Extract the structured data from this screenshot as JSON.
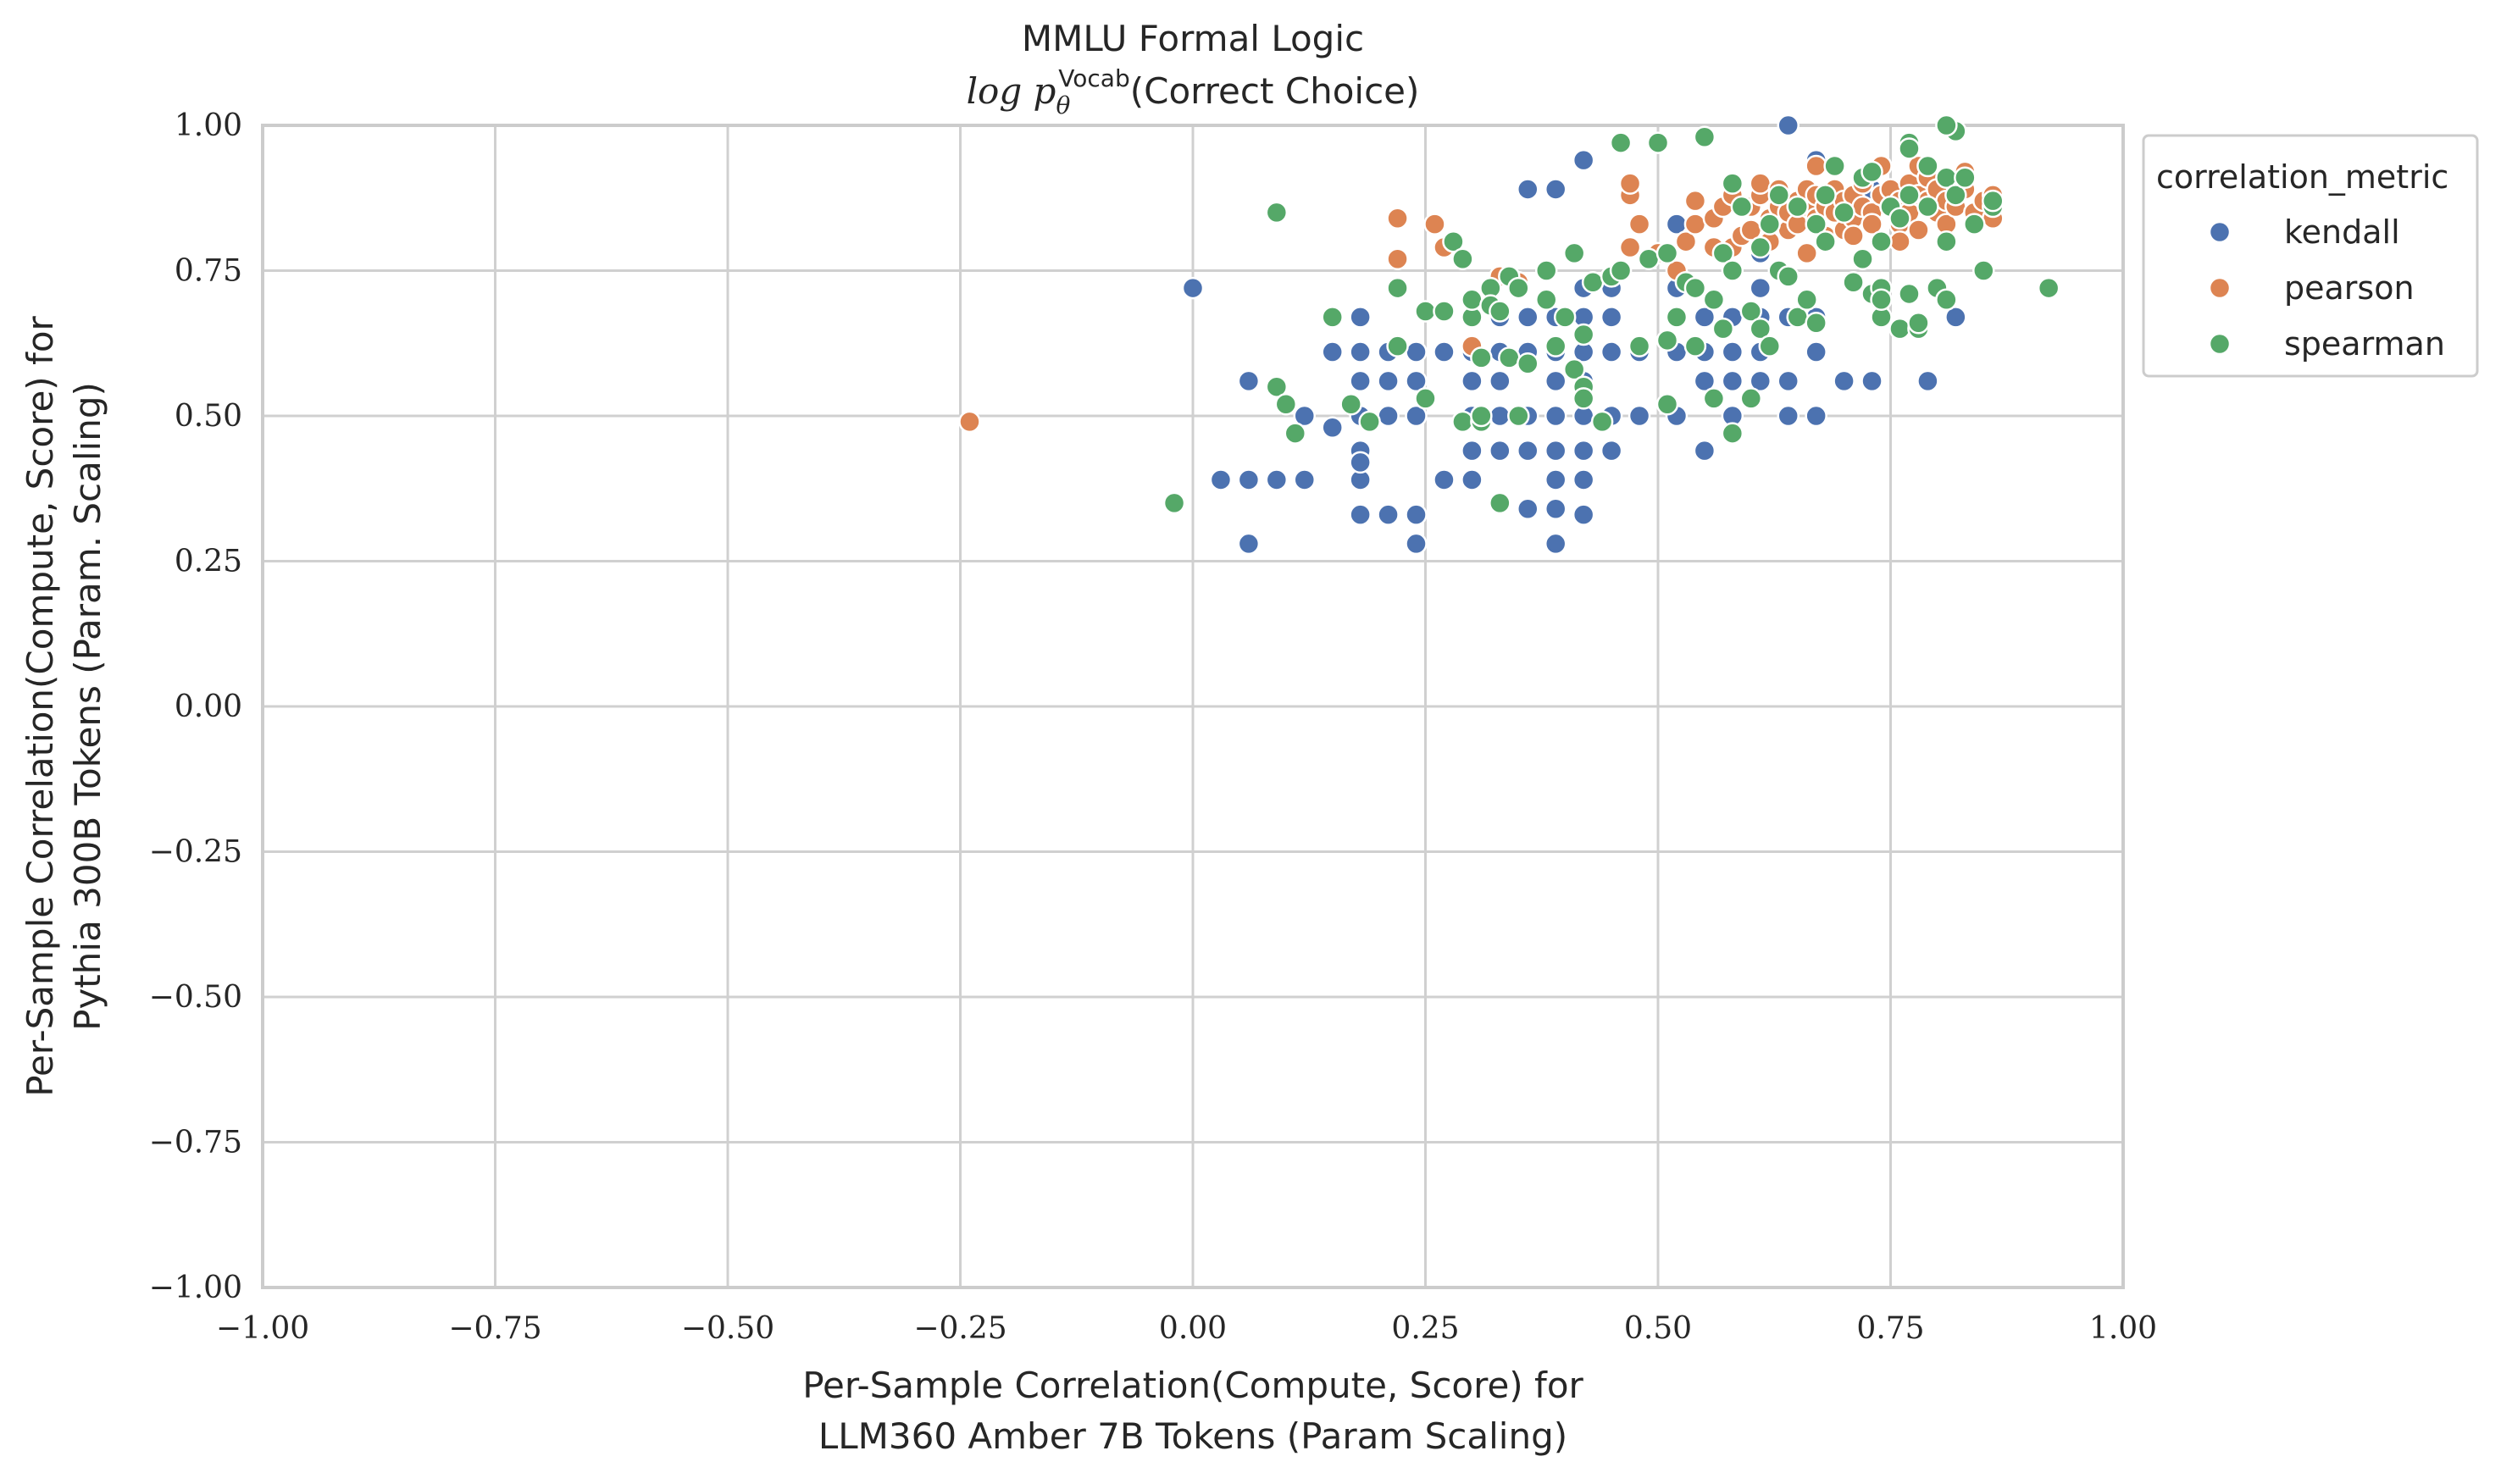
{
  "chart_data": {
    "type": "scatter",
    "title": "MMLU Formal Logic",
    "subtitle_prefix": "log p",
    "subtitle_sub": "θ",
    "subtitle_sup": "Vocab",
    "subtitle_suffix": "(Correct Choice)",
    "xlabel_line1": "Per-Sample Correlation(Compute, Score) for",
    "xlabel_line2": "LLM360 Amber 7B Tokens (Param Scaling)",
    "ylabel_line1": "Per-Sample Correlation(Compute, Score) for",
    "ylabel_line2": "Pythia 300B Tokens (Param. Scaling)",
    "xlim": [
      -1.0,
      1.0
    ],
    "ylim": [
      -1.0,
      1.0
    ],
    "grid": true,
    "legend_title": "correlation_metric",
    "legend_placement": "outside-top-right",
    "x_ticks": [
      -1.0,
      -0.75,
      -0.5,
      -0.25,
      0.0,
      0.25,
      0.5,
      0.75,
      1.0
    ],
    "y_ticks": [
      -1.0,
      -0.75,
      -0.5,
      -0.25,
      0.0,
      0.25,
      0.5,
      0.75,
      1.0
    ],
    "x_tick_labels": [
      "−1.00",
      "−0.75",
      "−0.50",
      "−0.25",
      "0.00",
      "0.25",
      "0.50",
      "0.75",
      "1.00"
    ],
    "y_tick_labels": [
      "−1.00",
      "−0.75",
      "−0.50",
      "−0.25",
      "0.00",
      "0.25",
      "0.50",
      "0.75",
      "1.00"
    ],
    "series": [
      {
        "name": "kendall",
        "color": "#4c72b0",
        "points": [
          [
            0.0,
            0.72
          ],
          [
            0.03,
            0.39
          ],
          [
            0.06,
            0.39
          ],
          [
            0.06,
            0.28
          ],
          [
            0.06,
            0.56
          ],
          [
            0.09,
            0.39
          ],
          [
            0.12,
            0.39
          ],
          [
            0.12,
            0.5
          ],
          [
            0.15,
            0.61
          ],
          [
            0.15,
            0.48
          ],
          [
            0.18,
            0.33
          ],
          [
            0.18,
            0.39
          ],
          [
            0.18,
            0.44
          ],
          [
            0.18,
            0.42
          ],
          [
            0.18,
            0.5
          ],
          [
            0.18,
            0.56
          ],
          [
            0.18,
            0.61
          ],
          [
            0.18,
            0.67
          ],
          [
            0.21,
            0.33
          ],
          [
            0.21,
            0.5
          ],
          [
            0.21,
            0.56
          ],
          [
            0.21,
            0.61
          ],
          [
            0.24,
            0.33
          ],
          [
            0.24,
            0.28
          ],
          [
            0.24,
            0.5
          ],
          [
            0.24,
            0.56
          ],
          [
            0.24,
            0.61
          ],
          [
            0.27,
            0.39
          ],
          [
            0.27,
            0.61
          ],
          [
            0.3,
            0.39
          ],
          [
            0.3,
            0.44
          ],
          [
            0.3,
            0.5
          ],
          [
            0.3,
            0.56
          ],
          [
            0.3,
            0.61
          ],
          [
            0.33,
            0.44
          ],
          [
            0.33,
            0.5
          ],
          [
            0.33,
            0.56
          ],
          [
            0.33,
            0.61
          ],
          [
            0.33,
            0.67
          ],
          [
            0.36,
            0.34
          ],
          [
            0.36,
            0.44
          ],
          [
            0.36,
            0.5
          ],
          [
            0.36,
            0.61
          ],
          [
            0.36,
            0.67
          ],
          [
            0.36,
            0.89
          ],
          [
            0.39,
            0.28
          ],
          [
            0.39,
            0.34
          ],
          [
            0.39,
            0.39
          ],
          [
            0.39,
            0.44
          ],
          [
            0.39,
            0.5
          ],
          [
            0.39,
            0.56
          ],
          [
            0.39,
            0.61
          ],
          [
            0.39,
            0.67
          ],
          [
            0.39,
            0.89
          ],
          [
            0.42,
            0.33
          ],
          [
            0.42,
            0.39
          ],
          [
            0.42,
            0.44
          ],
          [
            0.42,
            0.5
          ],
          [
            0.42,
            0.56
          ],
          [
            0.42,
            0.61
          ],
          [
            0.42,
            0.67
          ],
          [
            0.42,
            0.72
          ],
          [
            0.42,
            0.94
          ],
          [
            0.45,
            0.44
          ],
          [
            0.45,
            0.5
          ],
          [
            0.45,
            0.61
          ],
          [
            0.45,
            0.67
          ],
          [
            0.45,
            0.72
          ],
          [
            0.48,
            0.5
          ],
          [
            0.48,
            0.61
          ],
          [
            0.52,
            0.5
          ],
          [
            0.52,
            0.61
          ],
          [
            0.52,
            0.67
          ],
          [
            0.52,
            0.72
          ],
          [
            0.52,
            0.83
          ],
          [
            0.55,
            0.44
          ],
          [
            0.55,
            0.56
          ],
          [
            0.55,
            0.61
          ],
          [
            0.55,
            0.67
          ],
          [
            0.58,
            0.5
          ],
          [
            0.58,
            0.56
          ],
          [
            0.58,
            0.61
          ],
          [
            0.58,
            0.67
          ],
          [
            0.61,
            0.56
          ],
          [
            0.61,
            0.61
          ],
          [
            0.61,
            0.67
          ],
          [
            0.61,
            0.72
          ],
          [
            0.61,
            0.78
          ],
          [
            0.64,
            0.5
          ],
          [
            0.64,
            0.56
          ],
          [
            0.64,
            0.67
          ],
          [
            0.64,
            1.0
          ],
          [
            0.67,
            0.5
          ],
          [
            0.67,
            0.61
          ],
          [
            0.67,
            0.67
          ],
          [
            0.67,
            0.94
          ],
          [
            0.7,
            0.56
          ],
          [
            0.73,
            0.56
          ],
          [
            0.79,
            0.56
          ],
          [
            0.82,
            0.67
          ],
          [
            0.73,
            0.89
          ],
          [
            0.76,
            0.83
          ],
          [
            0.79,
            0.89
          ],
          [
            0.7,
            0.83
          ]
        ]
      },
      {
        "name": "pearson",
        "color": "#dd8452",
        "points": [
          [
            -0.24,
            0.49
          ],
          [
            0.22,
            0.84
          ],
          [
            0.22,
            0.77
          ],
          [
            0.26,
            0.83
          ],
          [
            0.27,
            0.79
          ],
          [
            0.3,
            0.62
          ],
          [
            0.33,
            0.74
          ],
          [
            0.35,
            0.73
          ],
          [
            0.47,
            0.88
          ],
          [
            0.47,
            0.9
          ],
          [
            0.48,
            0.83
          ],
          [
            0.47,
            0.79
          ],
          [
            0.5,
            0.78
          ],
          [
            0.52,
            0.75
          ],
          [
            0.53,
            0.8
          ],
          [
            0.54,
            0.83
          ],
          [
            0.54,
            0.87
          ],
          [
            0.56,
            0.79
          ],
          [
            0.56,
            0.84
          ],
          [
            0.57,
            0.86
          ],
          [
            0.58,
            0.88
          ],
          [
            0.58,
            0.79
          ],
          [
            0.59,
            0.81
          ],
          [
            0.6,
            0.82
          ],
          [
            0.6,
            0.86
          ],
          [
            0.61,
            0.88
          ],
          [
            0.61,
            0.9
          ],
          [
            0.62,
            0.84
          ],
          [
            0.62,
            0.8
          ],
          [
            0.63,
            0.86
          ],
          [
            0.63,
            0.89
          ],
          [
            0.64,
            0.82
          ],
          [
            0.64,
            0.85
          ],
          [
            0.65,
            0.83
          ],
          [
            0.65,
            0.87
          ],
          [
            0.66,
            0.78
          ],
          [
            0.66,
            0.86
          ],
          [
            0.66,
            0.89
          ],
          [
            0.67,
            0.84
          ],
          [
            0.67,
            0.88
          ],
          [
            0.67,
            0.93
          ],
          [
            0.68,
            0.86
          ],
          [
            0.68,
            0.81
          ],
          [
            0.69,
            0.85
          ],
          [
            0.69,
            0.89
          ],
          [
            0.7,
            0.82
          ],
          [
            0.7,
            0.87
          ],
          [
            0.71,
            0.84
          ],
          [
            0.71,
            0.88
          ],
          [
            0.71,
            0.81
          ],
          [
            0.72,
            0.86
          ],
          [
            0.72,
            0.9
          ],
          [
            0.73,
            0.85
          ],
          [
            0.73,
            0.83
          ],
          [
            0.74,
            0.88
          ],
          [
            0.74,
            0.93
          ],
          [
            0.75,
            0.86
          ],
          [
            0.75,
            0.89
          ],
          [
            0.76,
            0.83
          ],
          [
            0.76,
            0.87
          ],
          [
            0.77,
            0.9
          ],
          [
            0.77,
            0.85
          ],
          [
            0.78,
            0.88
          ],
          [
            0.78,
            0.93
          ],
          [
            0.78,
            0.82
          ],
          [
            0.79,
            0.87
          ],
          [
            0.79,
            0.91
          ],
          [
            0.8,
            0.85
          ],
          [
            0.8,
            0.89
          ],
          [
            0.81,
            0.83
          ],
          [
            0.81,
            0.87
          ],
          [
            0.82,
            0.9
          ],
          [
            0.82,
            0.86
          ],
          [
            0.83,
            0.89
          ],
          [
            0.84,
            0.85
          ],
          [
            0.85,
            0.87
          ],
          [
            0.86,
            0.84
          ],
          [
            0.86,
            0.88
          ],
          [
            0.83,
            0.92
          ],
          [
            0.76,
            0.8
          ]
        ]
      },
      {
        "name": "spearman",
        "color": "#55a868",
        "points": [
          [
            -0.02,
            0.35
          ],
          [
            0.09,
            0.85
          ],
          [
            0.09,
            0.55
          ],
          [
            0.1,
            0.52
          ],
          [
            0.11,
            0.47
          ],
          [
            0.15,
            0.67
          ],
          [
            0.17,
            0.52
          ],
          [
            0.19,
            0.49
          ],
          [
            0.22,
            0.72
          ],
          [
            0.22,
            0.62
          ],
          [
            0.25,
            0.68
          ],
          [
            0.25,
            0.53
          ],
          [
            0.27,
            0.68
          ],
          [
            0.28,
            0.8
          ],
          [
            0.29,
            0.77
          ],
          [
            0.29,
            0.49
          ],
          [
            0.3,
            0.67
          ],
          [
            0.3,
            0.7
          ],
          [
            0.31,
            0.49
          ],
          [
            0.31,
            0.5
          ],
          [
            0.31,
            0.6
          ],
          [
            0.32,
            0.72
          ],
          [
            0.32,
            0.69
          ],
          [
            0.33,
            0.35
          ],
          [
            0.33,
            0.68
          ],
          [
            0.34,
            0.6
          ],
          [
            0.34,
            0.74
          ],
          [
            0.35,
            0.5
          ],
          [
            0.35,
            0.72
          ],
          [
            0.36,
            0.59
          ],
          [
            0.38,
            0.7
          ],
          [
            0.38,
            0.75
          ],
          [
            0.39,
            0.62
          ],
          [
            0.4,
            0.67
          ],
          [
            0.41,
            0.78
          ],
          [
            0.41,
            0.58
          ],
          [
            0.42,
            0.55
          ],
          [
            0.42,
            0.53
          ],
          [
            0.42,
            0.64
          ],
          [
            0.43,
            0.73
          ],
          [
            0.44,
            0.49
          ],
          [
            0.45,
            0.74
          ],
          [
            0.46,
            0.75
          ],
          [
            0.46,
            0.97
          ],
          [
            0.48,
            0.62
          ],
          [
            0.49,
            0.77
          ],
          [
            0.5,
            0.97
          ],
          [
            0.51,
            0.52
          ],
          [
            0.51,
            0.63
          ],
          [
            0.51,
            0.78
          ],
          [
            0.52,
            0.67
          ],
          [
            0.53,
            0.73
          ],
          [
            0.54,
            0.62
          ],
          [
            0.54,
            0.72
          ],
          [
            0.55,
            0.98
          ],
          [
            0.56,
            0.7
          ],
          [
            0.56,
            0.53
          ],
          [
            0.57,
            0.65
          ],
          [
            0.57,
            0.78
          ],
          [
            0.58,
            0.47
          ],
          [
            0.58,
            0.75
          ],
          [
            0.58,
            0.9
          ],
          [
            0.59,
            0.86
          ],
          [
            0.6,
            0.53
          ],
          [
            0.6,
            0.68
          ],
          [
            0.61,
            0.65
          ],
          [
            0.61,
            0.79
          ],
          [
            0.62,
            0.62
          ],
          [
            0.62,
            0.83
          ],
          [
            0.63,
            0.75
          ],
          [
            0.63,
            0.88
          ],
          [
            0.64,
            0.74
          ],
          [
            0.65,
            0.67
          ],
          [
            0.65,
            0.86
          ],
          [
            0.66,
            0.7
          ],
          [
            0.67,
            0.83
          ],
          [
            0.67,
            0.66
          ],
          [
            0.68,
            0.8
          ],
          [
            0.68,
            0.88
          ],
          [
            0.69,
            0.93
          ],
          [
            0.7,
            0.85
          ],
          [
            0.71,
            0.73
          ],
          [
            0.72,
            0.91
          ],
          [
            0.72,
            0.77
          ],
          [
            0.73,
            0.71
          ],
          [
            0.73,
            0.92
          ],
          [
            0.74,
            0.67
          ],
          [
            0.74,
            0.72
          ],
          [
            0.74,
            0.8
          ],
          [
            0.75,
            0.86
          ],
          [
            0.76,
            0.65
          ],
          [
            0.76,
            0.84
          ],
          [
            0.77,
            0.71
          ],
          [
            0.77,
            0.88
          ],
          [
            0.77,
            0.97
          ],
          [
            0.78,
            0.65
          ],
          [
            0.78,
            0.66
          ],
          [
            0.79,
            0.86
          ],
          [
            0.79,
            0.93
          ],
          [
            0.8,
            0.72
          ],
          [
            0.81,
            0.7
          ],
          [
            0.81,
            0.91
          ],
          [
            0.81,
            0.8
          ],
          [
            0.82,
            0.99
          ],
          [
            0.82,
            0.88
          ],
          [
            0.83,
            0.91
          ],
          [
            0.84,
            0.83
          ],
          [
            0.85,
            0.75
          ],
          [
            0.86,
            0.86
          ],
          [
            0.86,
            0.87
          ],
          [
            0.92,
            0.72
          ],
          [
            0.81,
            1.0
          ],
          [
            0.77,
            0.96
          ],
          [
            0.74,
            0.7
          ]
        ]
      }
    ]
  }
}
